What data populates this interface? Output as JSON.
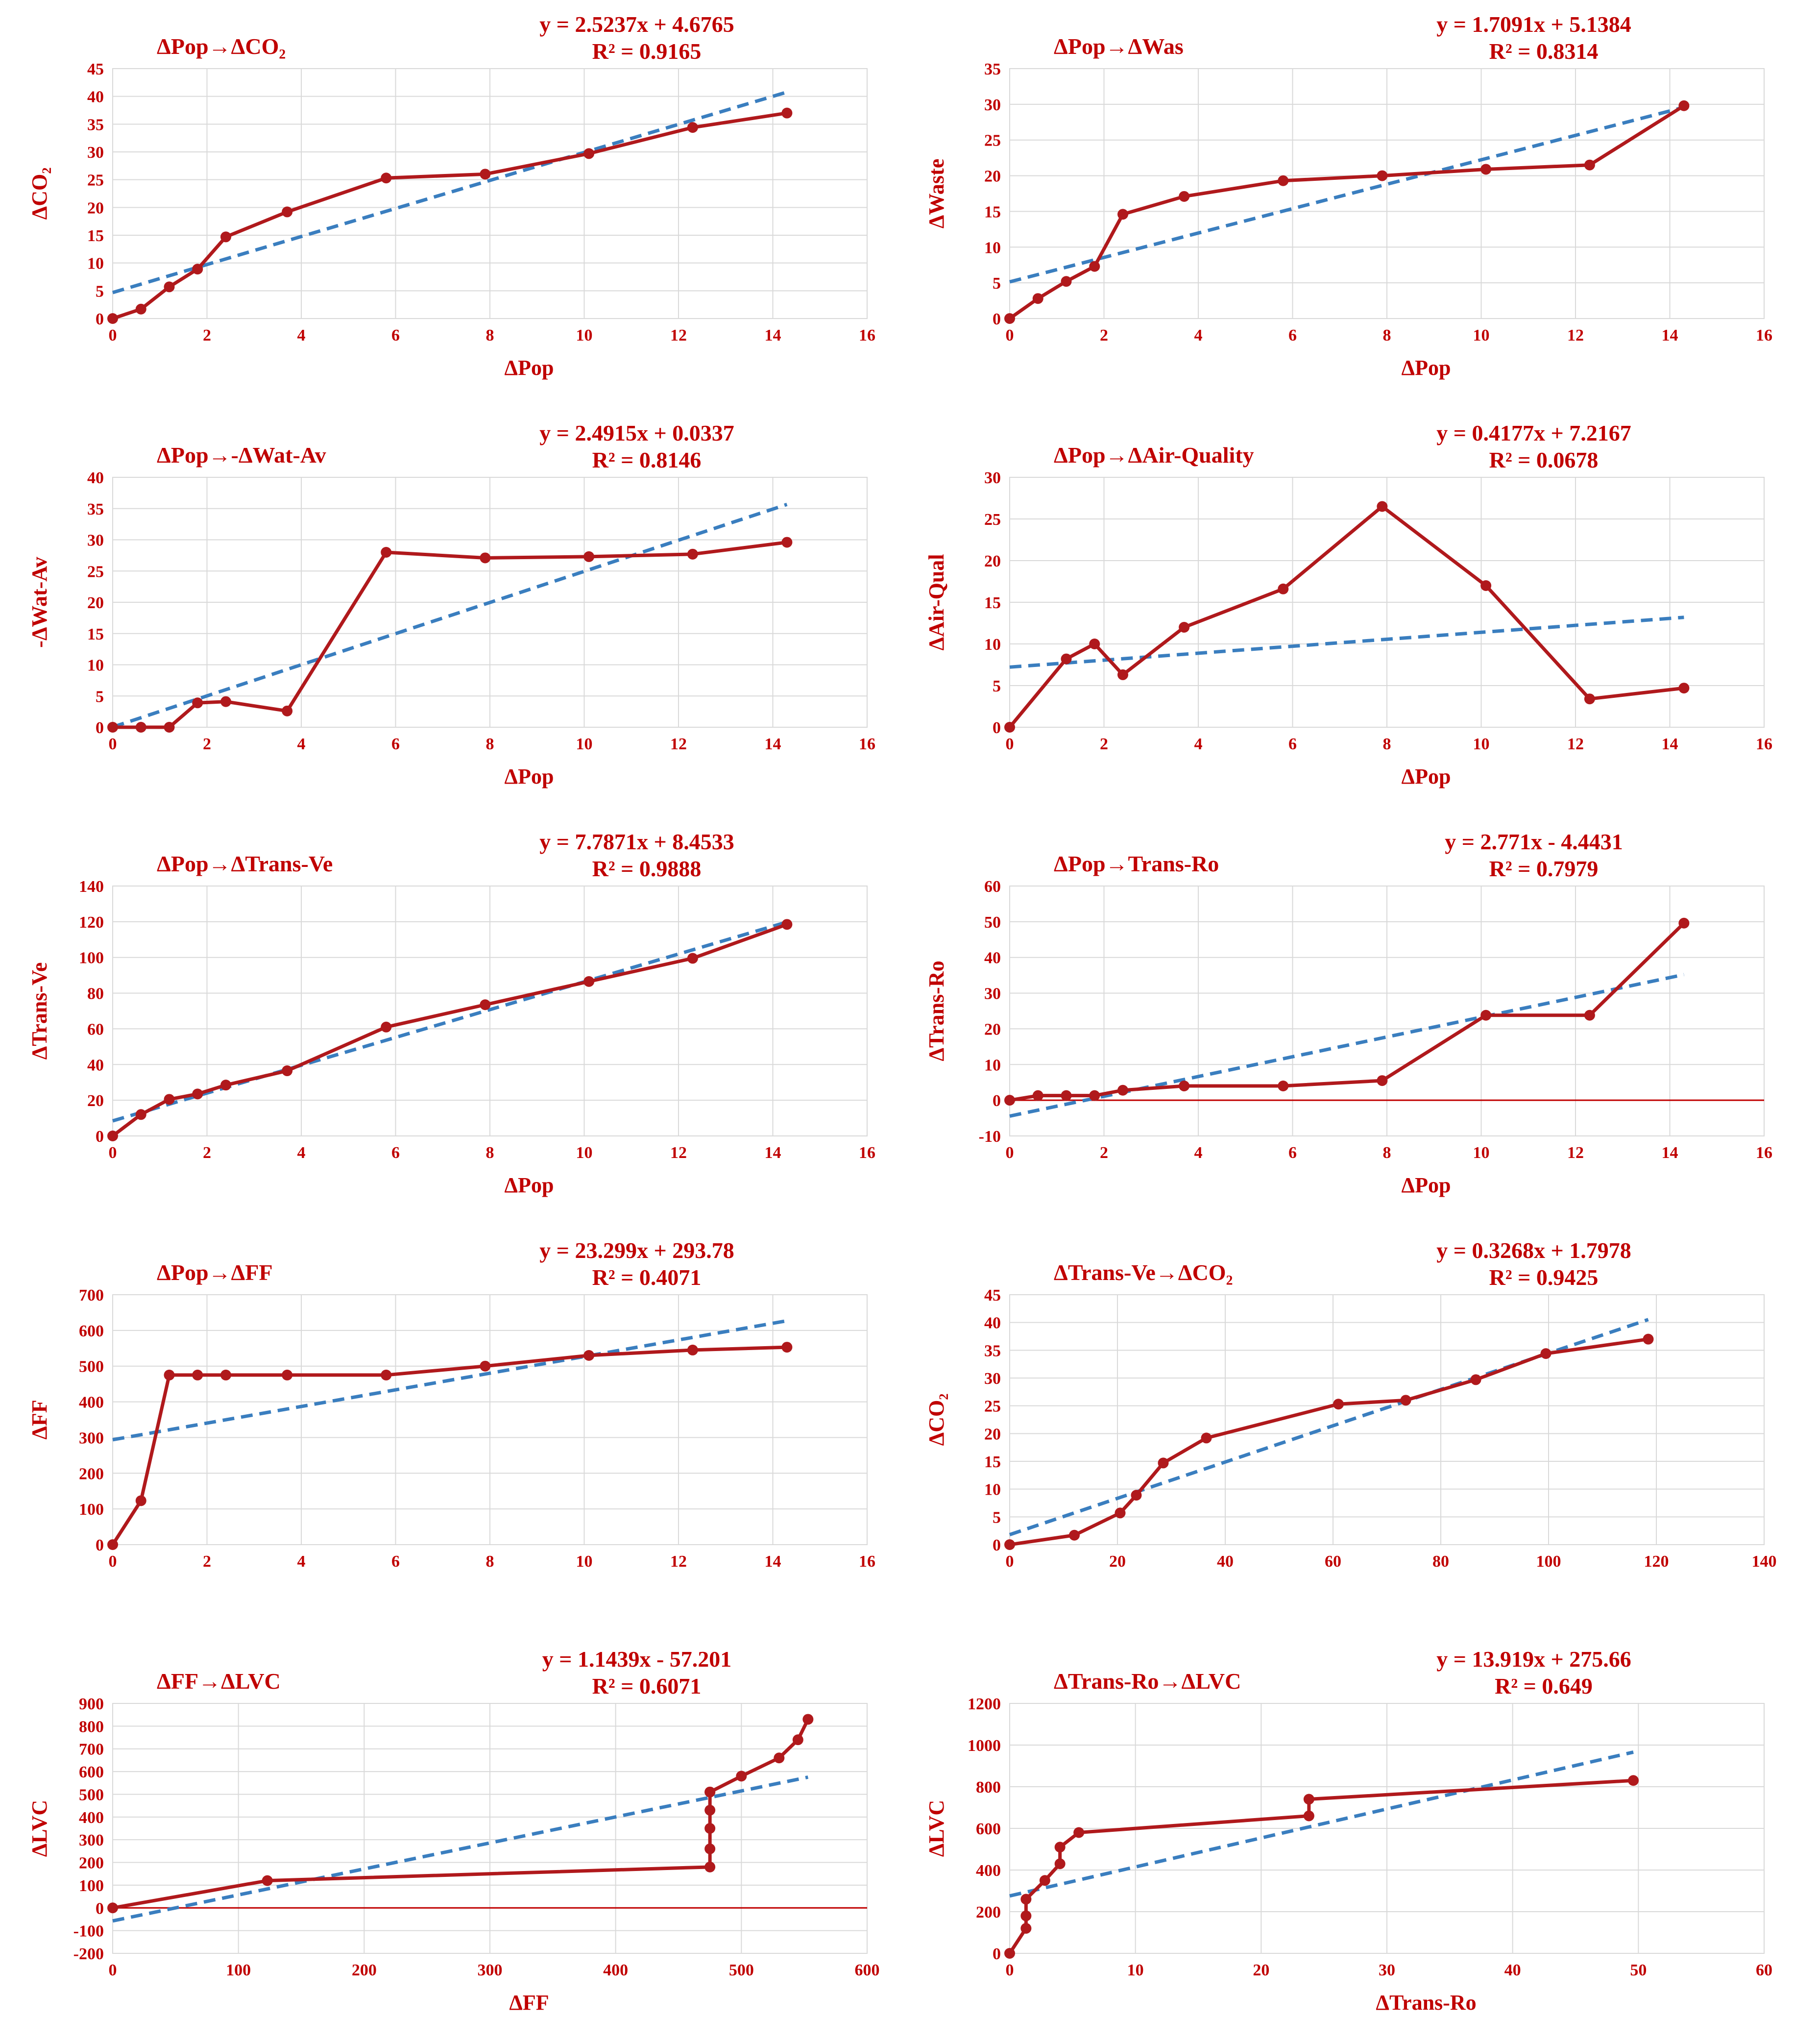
{
  "colors": {
    "series": "#b0191c",
    "trend": "#3a7ebf",
    "label": "#c00000",
    "grid": "#d9d9d9"
  },
  "chart_data": [
    {
      "type": "scatter",
      "title": "ΔPop→ΔCO₂",
      "equation": "y = 2.5237x + 4.6765",
      "r2": "R² = 0.9165",
      "xlabel": "ΔPop",
      "ylabel": "ΔCO₂",
      "xlim": [
        0,
        16
      ],
      "ylim": [
        0,
        45
      ],
      "x_ticks": [
        0,
        2,
        4,
        6,
        8,
        10,
        12,
        14,
        16
      ],
      "y_ticks": [
        0,
        5,
        10,
        15,
        20,
        25,
        30,
        35,
        40,
        45
      ],
      "grid": true,
      "x": [
        0,
        0.6,
        1.2,
        1.8,
        2.4,
        3.7,
        5.8,
        7.9,
        10.1,
        12.3,
        14.3
      ],
      "y": [
        0,
        1.7,
        5.7,
        8.9,
        14.7,
        19.2,
        25.3,
        26.0,
        29.7,
        34.4,
        37.0
      ],
      "trend": {
        "slope": 2.5237,
        "intercept": 4.6765,
        "x_range": [
          0,
          14.3
        ]
      }
    },
    {
      "type": "scatter",
      "title": "ΔPop→ΔWas",
      "equation": "y = 1.7091x + 5.1384",
      "r2": "R² = 0.8314",
      "xlabel": "ΔPop",
      "ylabel": "ΔWaste",
      "xlim": [
        0,
        16
      ],
      "ylim": [
        0,
        35
      ],
      "x_ticks": [
        0,
        2,
        4,
        6,
        8,
        10,
        12,
        14,
        16
      ],
      "y_ticks": [
        0,
        5,
        10,
        15,
        20,
        25,
        30,
        35
      ],
      "grid": true,
      "x": [
        0,
        0.6,
        1.2,
        1.8,
        2.4,
        3.7,
        5.8,
        7.9,
        10.1,
        12.3,
        14.3
      ],
      "y": [
        0,
        2.8,
        5.2,
        7.3,
        14.6,
        17.1,
        19.3,
        20.0,
        20.9,
        21.5,
        29.8
      ],
      "trend": {
        "slope": 1.7091,
        "intercept": 5.1384,
        "x_range": [
          0,
          14.3
        ]
      }
    },
    {
      "type": "scatter",
      "title": "ΔPop→-ΔWat-Av",
      "equation": "y = 2.4915x + 0.0337",
      "r2": "R² = 0.8146",
      "xlabel": "ΔPop",
      "ylabel": "-ΔWat-Av",
      "xlim": [
        0,
        16
      ],
      "ylim": [
        0,
        40
      ],
      "x_ticks": [
        0,
        2,
        4,
        6,
        8,
        10,
        12,
        14,
        16
      ],
      "y_ticks": [
        0,
        5,
        10,
        15,
        20,
        25,
        30,
        35,
        40
      ],
      "grid": true,
      "x": [
        0,
        0.6,
        1.2,
        1.8,
        2.4,
        3.7,
        5.8,
        7.9,
        10.1,
        12.3,
        14.3
      ],
      "y": [
        0,
        0,
        0,
        3.9,
        4.1,
        2.6,
        28.0,
        27.1,
        27.3,
        27.7,
        29.6
      ],
      "trend": {
        "slope": 2.4915,
        "intercept": 0.0337,
        "x_range": [
          0,
          14.3
        ]
      }
    },
    {
      "type": "scatter",
      "title": "ΔPop→ΔAir-Quality",
      "equation": "y = 0.4177x + 7.2167",
      "r2": "R² = 0.0678",
      "xlabel": "ΔPop",
      "ylabel": "ΔAir-Qual",
      "xlim": [
        0,
        16
      ],
      "ylim": [
        0,
        30
      ],
      "x_ticks": [
        0,
        2,
        4,
        6,
        8,
        10,
        12,
        14,
        16
      ],
      "y_ticks": [
        0,
        5,
        10,
        15,
        20,
        25,
        30
      ],
      "grid": true,
      "x": [
        0,
        1.2,
        1.8,
        2.4,
        3.7,
        5.8,
        7.9,
        10.1,
        12.3,
        14.3
      ],
      "y": [
        0,
        8.2,
        10.0,
        6.3,
        12.0,
        16.6,
        26.5,
        17.0,
        3.4,
        4.7
      ],
      "trend": {
        "slope": 0.4177,
        "intercept": 7.2167,
        "x_range": [
          0,
          14.3
        ]
      }
    },
    {
      "type": "scatter",
      "title": "ΔPop→ΔTrans-Ve",
      "equation": "y = 7.7871x + 8.4533",
      "r2": "R² = 0.9888",
      "xlabel": "ΔPop",
      "ylabel": "ΔTrans-Ve",
      "xlim": [
        0,
        16
      ],
      "ylim": [
        0,
        140
      ],
      "x_ticks": [
        0,
        2,
        4,
        6,
        8,
        10,
        12,
        14,
        16
      ],
      "y_ticks": [
        0,
        20,
        40,
        60,
        80,
        100,
        120,
        140
      ],
      "grid": true,
      "x": [
        0,
        0.6,
        1.2,
        1.8,
        2.4,
        3.7,
        5.8,
        7.9,
        10.1,
        12.3,
        14.3
      ],
      "y": [
        0,
        12.0,
        20.5,
        23.5,
        28.5,
        36.5,
        61.0,
        73.5,
        86.5,
        99.5,
        118.5
      ],
      "trend": {
        "slope": 7.7871,
        "intercept": 8.4533,
        "x_range": [
          0,
          14.3
        ]
      }
    },
    {
      "type": "scatter",
      "title": "ΔPop→Trans-Ro",
      "equation": "y = 2.771x - 4.4431",
      "r2": "R² = 0.7979",
      "xlabel": "ΔPop",
      "ylabel": "ΔTrans-Ro",
      "xlim": [
        0,
        16
      ],
      "ylim": [
        -10,
        60
      ],
      "x_ticks": [
        0,
        2,
        4,
        6,
        8,
        10,
        12,
        14,
        16
      ],
      "y_ticks": [
        -10,
        0,
        10,
        20,
        30,
        40,
        50,
        60
      ],
      "grid": true,
      "x": [
        0,
        0.6,
        1.2,
        1.8,
        2.4,
        3.7,
        5.8,
        7.9,
        10.1,
        12.3,
        14.3
      ],
      "y": [
        0,
        1.3,
        1.3,
        1.3,
        2.8,
        4.0,
        4.0,
        5.5,
        23.8,
        23.8,
        49.6
      ],
      "trend": {
        "slope": 2.771,
        "intercept": -4.4431,
        "x_range": [
          0,
          14.3
        ]
      }
    },
    {
      "type": "scatter",
      "title": "ΔPop→ΔFF",
      "equation": "y = 23.299x + 293.78",
      "r2": "R² = 0.4071",
      "xlabel": "",
      "ylabel": "ΔFF",
      "xlim": [
        0,
        16
      ],
      "ylim": [
        0,
        700
      ],
      "x_ticks": [
        0,
        2,
        4,
        6,
        8,
        10,
        12,
        14,
        16
      ],
      "y_ticks": [
        0,
        100,
        200,
        300,
        400,
        500,
        600,
        700
      ],
      "grid": true,
      "x": [
        0,
        0.6,
        1.2,
        1.8,
        2.4,
        3.7,
        5.8,
        7.9,
        10.1,
        12.3,
        14.3
      ],
      "y": [
        0,
        123,
        475,
        475,
        475,
        475,
        475,
        500,
        530,
        545,
        553
      ],
      "trend": {
        "slope": 23.299,
        "intercept": 293.78,
        "x_range": [
          0,
          14.3
        ]
      }
    },
    {
      "type": "scatter",
      "title": "ΔTrans-Ve→ΔCO₂",
      "equation": "y = 0.3268x + 1.7978",
      "r2": "R² = 0.9425",
      "xlabel": "",
      "ylabel": "ΔCO₂",
      "xlim": [
        0,
        140
      ],
      "ylim": [
        0,
        45
      ],
      "x_ticks": [
        0,
        20,
        40,
        60,
        80,
        100,
        120,
        140
      ],
      "y_ticks": [
        0,
        5,
        10,
        15,
        20,
        25,
        30,
        35,
        40,
        45
      ],
      "grid": true,
      "x": [
        0,
        12.0,
        20.5,
        23.5,
        28.5,
        36.5,
        61.0,
        73.5,
        86.5,
        99.5,
        118.5
      ],
      "y": [
        0,
        1.7,
        5.7,
        8.9,
        14.7,
        19.2,
        25.3,
        26.0,
        29.7,
        34.4,
        37.0
      ],
      "trend": {
        "slope": 0.3268,
        "intercept": 1.7978,
        "x_range": [
          0,
          118.5
        ]
      }
    },
    {
      "type": "scatter",
      "title": "ΔFF→ΔLVC",
      "equation": "y = 1.1439x - 57.201",
      "r2": "R² = 0.6071",
      "xlabel": "ΔFF",
      "ylabel": "ΔLVC",
      "xlim": [
        0,
        600
      ],
      "ylim": [
        -200,
        900
      ],
      "x_ticks": [
        0,
        100,
        200,
        300,
        400,
        500,
        600
      ],
      "y_ticks": [
        -200,
        -100,
        0,
        100,
        200,
        300,
        400,
        500,
        600,
        700,
        800,
        900
      ],
      "grid": true,
      "x": [
        0,
        123,
        475,
        475,
        475,
        475,
        475,
        475,
        500,
        530,
        545,
        553
      ],
      "y": [
        0,
        120,
        180,
        260,
        350,
        430,
        510,
        510,
        580,
        660,
        740,
        830
      ],
      "trend": {
        "slope": 1.1439,
        "intercept": -57.201,
        "x_range": [
          0,
          553
        ]
      }
    },
    {
      "type": "scatter",
      "title": "ΔTrans-Ro→ΔLVC",
      "equation": "y = 13.919x + 275.66",
      "r2": "R² = 0.649",
      "xlabel": "ΔTrans-Ro",
      "ylabel": "ΔLVC",
      "xlim": [
        0,
        60
      ],
      "ylim": [
        0,
        1200
      ],
      "x_ticks": [
        0,
        10,
        20,
        30,
        40,
        50,
        60
      ],
      "y_ticks": [
        0,
        200,
        400,
        600,
        800,
        1000,
        1200
      ],
      "grid": true,
      "x": [
        0,
        1.3,
        1.3,
        1.3,
        2.8,
        4.0,
        4.0,
        5.5,
        23.8,
        23.8,
        49.6
      ],
      "y": [
        0,
        120,
        180,
        260,
        350,
        430,
        510,
        580,
        660,
        740,
        830
      ],
      "trend": {
        "slope": 13.919,
        "intercept": 275.66,
        "x_range": [
          0,
          49.6
        ]
      }
    }
  ]
}
